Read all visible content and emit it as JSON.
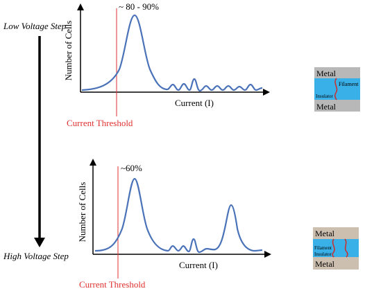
{
  "left_labels": {
    "low_step": "Low Voltage Step",
    "high_step": "High Voltage Step"
  },
  "colors": {
    "curve": "#4a72b8",
    "threshold": "#e03030",
    "metal": "#b8b8b8",
    "metal_bottom_panel": "#cdbfb0",
    "insulator": "#3ab0e8",
    "filament": "#c83232",
    "axis": "#000000"
  },
  "plots": [
    {
      "peak_label": "~ 80 - 90%",
      "y_label": "Number of Cells",
      "x_label": "Current (I)",
      "threshold_label": "Current Threshold"
    },
    {
      "peak_label": "~60%",
      "y_label": "Number of Cells",
      "x_label": "Current (I)",
      "threshold_label": "Current Threshold"
    }
  ],
  "cells": [
    {
      "metal_top": "Metal",
      "metal_bottom": "Metal",
      "filament_label": "Filament",
      "insulator_label": "Insulator"
    },
    {
      "metal_top": "Metal",
      "metal_bottom": "Metal",
      "filament_label": "Filament",
      "insulator_label": "Insulator"
    }
  ]
}
